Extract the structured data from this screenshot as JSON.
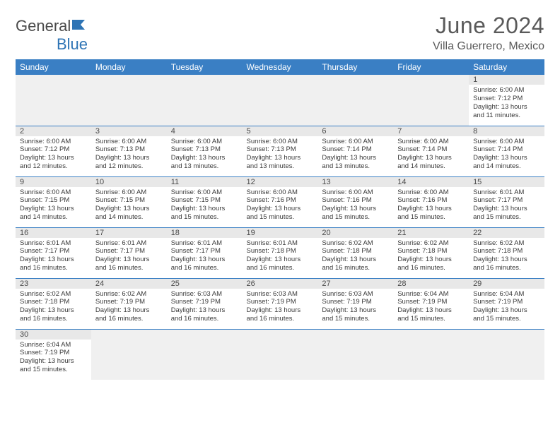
{
  "brand": {
    "part1": "General",
    "part2": "Blue"
  },
  "title": "June 2024",
  "location": "Villa Guerrero, Mexico",
  "colors": {
    "header_bg": "#3a7fc4",
    "header_text": "#ffffff",
    "daynum_bg": "#e8e8e8",
    "border": "#3a7fc4",
    "text": "#3a3a3a",
    "title_color": "#5a5a5a",
    "brand_blue": "#2e74b5"
  },
  "typography": {
    "title_fontsize": 32,
    "location_fontsize": 16,
    "weekday_fontsize": 12,
    "cell_fontsize": 9.5,
    "daynum_fontsize": 11
  },
  "weekdays": [
    "Sunday",
    "Monday",
    "Tuesday",
    "Wednesday",
    "Thursday",
    "Friday",
    "Saturday"
  ],
  "weeks": [
    [
      null,
      null,
      null,
      null,
      null,
      null,
      {
        "n": "1",
        "sr": "Sunrise: 6:00 AM",
        "ss": "Sunset: 7:12 PM",
        "d1": "Daylight: 13 hours",
        "d2": "and 11 minutes."
      }
    ],
    [
      {
        "n": "2",
        "sr": "Sunrise: 6:00 AM",
        "ss": "Sunset: 7:12 PM",
        "d1": "Daylight: 13 hours",
        "d2": "and 12 minutes."
      },
      {
        "n": "3",
        "sr": "Sunrise: 6:00 AM",
        "ss": "Sunset: 7:13 PM",
        "d1": "Daylight: 13 hours",
        "d2": "and 12 minutes."
      },
      {
        "n": "4",
        "sr": "Sunrise: 6:00 AM",
        "ss": "Sunset: 7:13 PM",
        "d1": "Daylight: 13 hours",
        "d2": "and 13 minutes."
      },
      {
        "n": "5",
        "sr": "Sunrise: 6:00 AM",
        "ss": "Sunset: 7:13 PM",
        "d1": "Daylight: 13 hours",
        "d2": "and 13 minutes."
      },
      {
        "n": "6",
        "sr": "Sunrise: 6:00 AM",
        "ss": "Sunset: 7:14 PM",
        "d1": "Daylight: 13 hours",
        "d2": "and 13 minutes."
      },
      {
        "n": "7",
        "sr": "Sunrise: 6:00 AM",
        "ss": "Sunset: 7:14 PM",
        "d1": "Daylight: 13 hours",
        "d2": "and 14 minutes."
      },
      {
        "n": "8",
        "sr": "Sunrise: 6:00 AM",
        "ss": "Sunset: 7:14 PM",
        "d1": "Daylight: 13 hours",
        "d2": "and 14 minutes."
      }
    ],
    [
      {
        "n": "9",
        "sr": "Sunrise: 6:00 AM",
        "ss": "Sunset: 7:15 PM",
        "d1": "Daylight: 13 hours",
        "d2": "and 14 minutes."
      },
      {
        "n": "10",
        "sr": "Sunrise: 6:00 AM",
        "ss": "Sunset: 7:15 PM",
        "d1": "Daylight: 13 hours",
        "d2": "and 14 minutes."
      },
      {
        "n": "11",
        "sr": "Sunrise: 6:00 AM",
        "ss": "Sunset: 7:15 PM",
        "d1": "Daylight: 13 hours",
        "d2": "and 15 minutes."
      },
      {
        "n": "12",
        "sr": "Sunrise: 6:00 AM",
        "ss": "Sunset: 7:16 PM",
        "d1": "Daylight: 13 hours",
        "d2": "and 15 minutes."
      },
      {
        "n": "13",
        "sr": "Sunrise: 6:00 AM",
        "ss": "Sunset: 7:16 PM",
        "d1": "Daylight: 13 hours",
        "d2": "and 15 minutes."
      },
      {
        "n": "14",
        "sr": "Sunrise: 6:00 AM",
        "ss": "Sunset: 7:16 PM",
        "d1": "Daylight: 13 hours",
        "d2": "and 15 minutes."
      },
      {
        "n": "15",
        "sr": "Sunrise: 6:01 AM",
        "ss": "Sunset: 7:17 PM",
        "d1": "Daylight: 13 hours",
        "d2": "and 15 minutes."
      }
    ],
    [
      {
        "n": "16",
        "sr": "Sunrise: 6:01 AM",
        "ss": "Sunset: 7:17 PM",
        "d1": "Daylight: 13 hours",
        "d2": "and 16 minutes."
      },
      {
        "n": "17",
        "sr": "Sunrise: 6:01 AM",
        "ss": "Sunset: 7:17 PM",
        "d1": "Daylight: 13 hours",
        "d2": "and 16 minutes."
      },
      {
        "n": "18",
        "sr": "Sunrise: 6:01 AM",
        "ss": "Sunset: 7:17 PM",
        "d1": "Daylight: 13 hours",
        "d2": "and 16 minutes."
      },
      {
        "n": "19",
        "sr": "Sunrise: 6:01 AM",
        "ss": "Sunset: 7:18 PM",
        "d1": "Daylight: 13 hours",
        "d2": "and 16 minutes."
      },
      {
        "n": "20",
        "sr": "Sunrise: 6:02 AM",
        "ss": "Sunset: 7:18 PM",
        "d1": "Daylight: 13 hours",
        "d2": "and 16 minutes."
      },
      {
        "n": "21",
        "sr": "Sunrise: 6:02 AM",
        "ss": "Sunset: 7:18 PM",
        "d1": "Daylight: 13 hours",
        "d2": "and 16 minutes."
      },
      {
        "n": "22",
        "sr": "Sunrise: 6:02 AM",
        "ss": "Sunset: 7:18 PM",
        "d1": "Daylight: 13 hours",
        "d2": "and 16 minutes."
      }
    ],
    [
      {
        "n": "23",
        "sr": "Sunrise: 6:02 AM",
        "ss": "Sunset: 7:18 PM",
        "d1": "Daylight: 13 hours",
        "d2": "and 16 minutes."
      },
      {
        "n": "24",
        "sr": "Sunrise: 6:02 AM",
        "ss": "Sunset: 7:19 PM",
        "d1": "Daylight: 13 hours",
        "d2": "and 16 minutes."
      },
      {
        "n": "25",
        "sr": "Sunrise: 6:03 AM",
        "ss": "Sunset: 7:19 PM",
        "d1": "Daylight: 13 hours",
        "d2": "and 16 minutes."
      },
      {
        "n": "26",
        "sr": "Sunrise: 6:03 AM",
        "ss": "Sunset: 7:19 PM",
        "d1": "Daylight: 13 hours",
        "d2": "and 16 minutes."
      },
      {
        "n": "27",
        "sr": "Sunrise: 6:03 AM",
        "ss": "Sunset: 7:19 PM",
        "d1": "Daylight: 13 hours",
        "d2": "and 15 minutes."
      },
      {
        "n": "28",
        "sr": "Sunrise: 6:04 AM",
        "ss": "Sunset: 7:19 PM",
        "d1": "Daylight: 13 hours",
        "d2": "and 15 minutes."
      },
      {
        "n": "29",
        "sr": "Sunrise: 6:04 AM",
        "ss": "Sunset: 7:19 PM",
        "d1": "Daylight: 13 hours",
        "d2": "and 15 minutes."
      }
    ],
    [
      {
        "n": "30",
        "sr": "Sunrise: 6:04 AM",
        "ss": "Sunset: 7:19 PM",
        "d1": "Daylight: 13 hours",
        "d2": "and 15 minutes."
      },
      null,
      null,
      null,
      null,
      null,
      null
    ]
  ]
}
